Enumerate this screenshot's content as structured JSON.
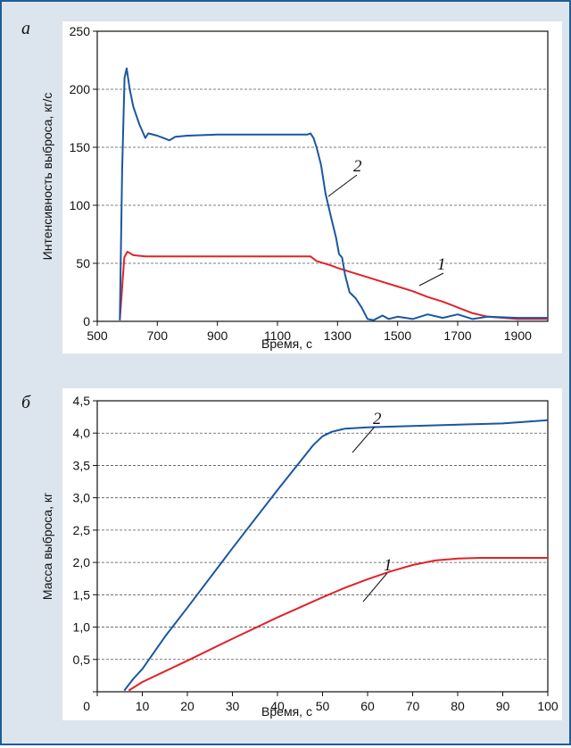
{
  "colors": {
    "background": "#dce5ee",
    "frame": "#1f5c99",
    "series_1": "#e0232a",
    "series_2": "#1a57a0",
    "grid": "#555555"
  },
  "chart_data": [
    {
      "panel": "а",
      "type": "line",
      "xlabel": "Время, с",
      "ylabel": "Интенсивность выброса, кг/с",
      "xlim": [
        500,
        2000
      ],
      "ylim": [
        0,
        250
      ],
      "xticks": [
        500,
        700,
        900,
        1100,
        1300,
        1500,
        1700,
        1900
      ],
      "yticks": [
        0,
        50,
        100,
        150,
        200,
        250
      ],
      "grid": "horizontal dashed",
      "series": [
        {
          "name": "1",
          "color": "#e0232a",
          "x": [
            575,
            590,
            600,
            620,
            660,
            700,
            800,
            900,
            1000,
            1100,
            1210,
            1230,
            1280,
            1300,
            1350,
            1400,
            1450,
            1500,
            1550,
            1600,
            1650,
            1700,
            1750,
            1800,
            1900,
            2000
          ],
          "y": [
            1,
            55,
            60,
            57,
            56,
            56,
            56,
            56,
            56,
            56,
            56,
            52,
            48,
            46,
            42,
            38,
            34,
            30,
            26,
            21,
            17,
            12,
            7,
            4,
            2,
            2
          ]
        },
        {
          "name": "2",
          "color": "#1a57a0",
          "x": [
            575,
            583,
            591,
            598,
            608,
            620,
            640,
            660,
            670,
            700,
            720,
            740,
            760,
            800,
            900,
            1000,
            1100,
            1200,
            1210,
            1220,
            1230,
            1245,
            1260,
            1280,
            1295,
            1305,
            1315,
            1325,
            1340,
            1360,
            1380,
            1400,
            1420,
            1450,
            1470,
            1500,
            1550,
            1600,
            1650,
            1700,
            1750,
            1800,
            1900,
            2000
          ],
          "y": [
            1,
            130,
            210,
            218,
            200,
            185,
            170,
            158,
            162,
            160,
            158,
            156,
            159,
            160,
            161,
            161,
            161,
            161,
            162,
            158,
            150,
            135,
            110,
            88,
            72,
            58,
            55,
            40,
            25,
            20,
            12,
            2,
            1,
            5,
            2,
            4,
            2,
            6,
            3,
            6,
            2,
            4,
            3,
            3
          ]
        }
      ],
      "annotations": [
        {
          "text": "1",
          "series": "1"
        },
        {
          "text": "2",
          "series": "2"
        }
      ]
    },
    {
      "panel": "б",
      "type": "line",
      "xlabel": "Время, с",
      "ylabel": "Масса выброса, кг",
      "xlim": [
        0,
        100
      ],
      "ylim": [
        0,
        4.5
      ],
      "xticks": [
        0,
        10,
        20,
        30,
        40,
        50,
        60,
        70,
        80,
        90,
        100
      ],
      "yticks": [
        0,
        0.5,
        1.0,
        1.5,
        2.0,
        2.5,
        3.0,
        3.5,
        4.0,
        4.5
      ],
      "tick_labels_x": [
        "0",
        "10",
        "20",
        "30",
        "40",
        "50",
        "60",
        "70",
        "80",
        "90",
        "100"
      ],
      "tick_labels_y": [
        "",
        "0,5",
        "1,0",
        "1,5",
        "2,0",
        "2,5",
        "3,0",
        "3,5",
        "4,0",
        "4,5"
      ],
      "grid": "horizontal dashed",
      "series": [
        {
          "name": "1",
          "color": "#e0232a",
          "x": [
            7,
            10,
            20,
            30,
            40,
            50,
            55,
            60,
            65,
            70,
            75,
            80,
            85,
            90,
            100
          ],
          "y": [
            0.02,
            0.15,
            0.48,
            0.82,
            1.15,
            1.46,
            1.61,
            1.74,
            1.86,
            1.96,
            2.03,
            2.06,
            2.07,
            2.07,
            2.07
          ]
        },
        {
          "name": "2",
          "color": "#1a57a0",
          "x": [
            6,
            8,
            10,
            15,
            20,
            30,
            40,
            48,
            50,
            52,
            55,
            60,
            70,
            80,
            90,
            100
          ],
          "y": [
            0.02,
            0.2,
            0.35,
            0.85,
            1.3,
            2.22,
            3.12,
            3.82,
            3.95,
            4.02,
            4.07,
            4.09,
            4.11,
            4.13,
            4.15,
            4.2
          ]
        }
      ],
      "annotations": [
        {
          "text": "1",
          "series": "1"
        },
        {
          "text": "2",
          "series": "2"
        }
      ]
    }
  ]
}
